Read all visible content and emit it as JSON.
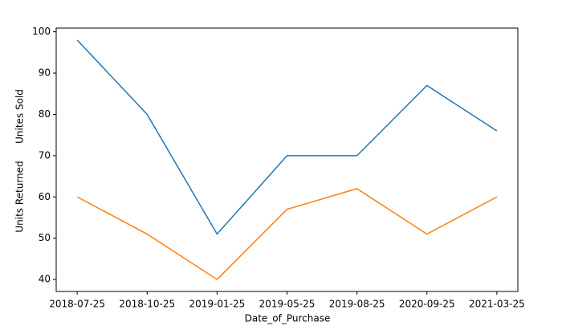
{
  "chart_data": {
    "type": "line",
    "categories": [
      "2018-07-25",
      "2018-10-25",
      "2019-01-25",
      "2019-05-25",
      "2019-08-25",
      "2020-09-25",
      "2021-03-25"
    ],
    "series": [
      {
        "color": "#1f77b4",
        "values": [
          98,
          80,
          51,
          70,
          70,
          87,
          76
        ]
      },
      {
        "color": "#ff7f0e",
        "values": [
          60,
          51,
          40,
          57,
          62,
          51,
          60
        ]
      }
    ],
    "xlabel": "Date_of_Purchase",
    "ylabel": [
      "Units Returned",
      "Unites Sold"
    ],
    "ylim": [
      37.1,
      100.9
    ],
    "yticks": [
      40,
      50,
      60,
      70,
      80,
      90,
      100
    ]
  }
}
